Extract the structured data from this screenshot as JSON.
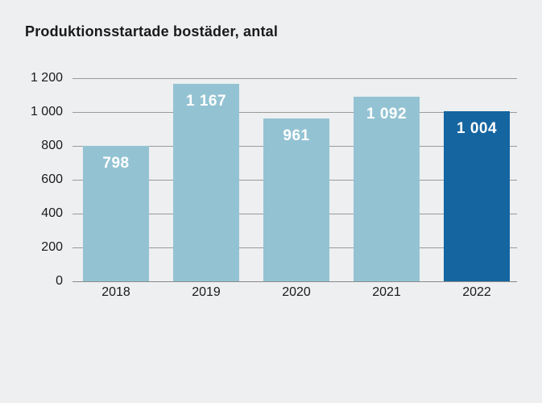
{
  "chart_data": {
    "type": "bar",
    "title": "Produktionsstartade bostäder, antal",
    "categories": [
      "2018",
      "2019",
      "2020",
      "2021",
      "2022"
    ],
    "values": [
      798,
      1167,
      961,
      1092,
      1004
    ],
    "value_labels": [
      "798",
      "1 167",
      "961",
      "1 092",
      "1 004"
    ],
    "xlabel": "",
    "ylabel": "",
    "ylim": [
      0,
      1200
    ],
    "ytick_interval": 200,
    "ytick_labels": [
      "0",
      "200",
      "400",
      "600",
      "800",
      "1 000",
      "1 200"
    ],
    "grid": true,
    "legend": false,
    "highlight_index": 4
  },
  "colors": {
    "background": "#edeff1",
    "bar": "#93c3d3",
    "bar_highlight": "#1565a0",
    "gridline": "#9a9a9a",
    "axis_line": "#8a8a8a",
    "title_text": "#1a1a1a",
    "tick_text": "#1a1a1a",
    "value_label_text": "#ffffff"
  }
}
